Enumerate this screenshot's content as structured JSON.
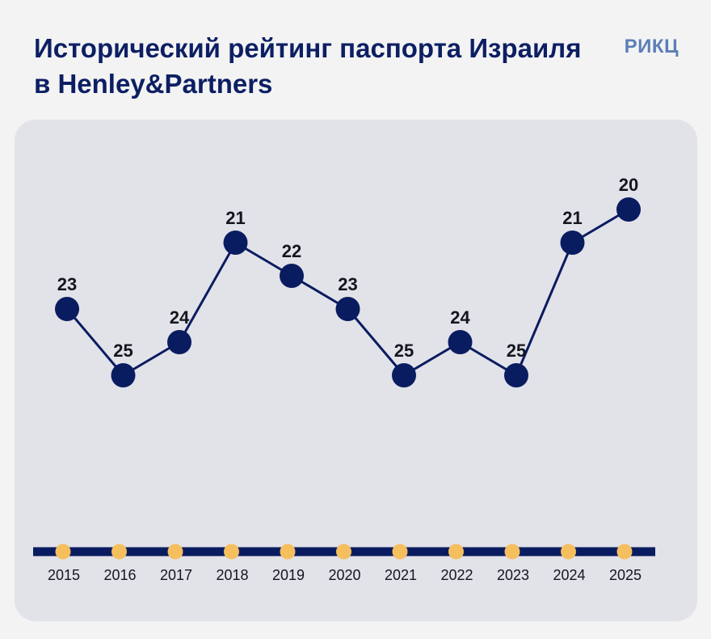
{
  "header": {
    "title": "Исторический рейтинг паспорта Израиля в Henley&Partners",
    "brand": "РИКЦ"
  },
  "colors": {
    "title": "#0d1f63",
    "brand": "#5c7fb8",
    "line": "#0a1c60",
    "timeline_dot": "#f6bf5d",
    "panel": "#e2e2e9",
    "background": "#f3f3f4"
  },
  "chart_data": {
    "type": "line",
    "title": "Исторический рейтинг паспорта Израиля в Henley&Partners",
    "x": [
      "2015",
      "2016",
      "2017",
      "2018",
      "2019",
      "2020",
      "2021",
      "2022",
      "2023",
      "2024",
      "2025"
    ],
    "series": [
      {
        "values": [
          23,
          25,
          24,
          21,
          22,
          23,
          25,
          24,
          25,
          21,
          20
        ]
      }
    ],
    "inverted_y": true,
    "ylim": [
      19,
      26
    ],
    "grid": false,
    "legend": "none"
  }
}
